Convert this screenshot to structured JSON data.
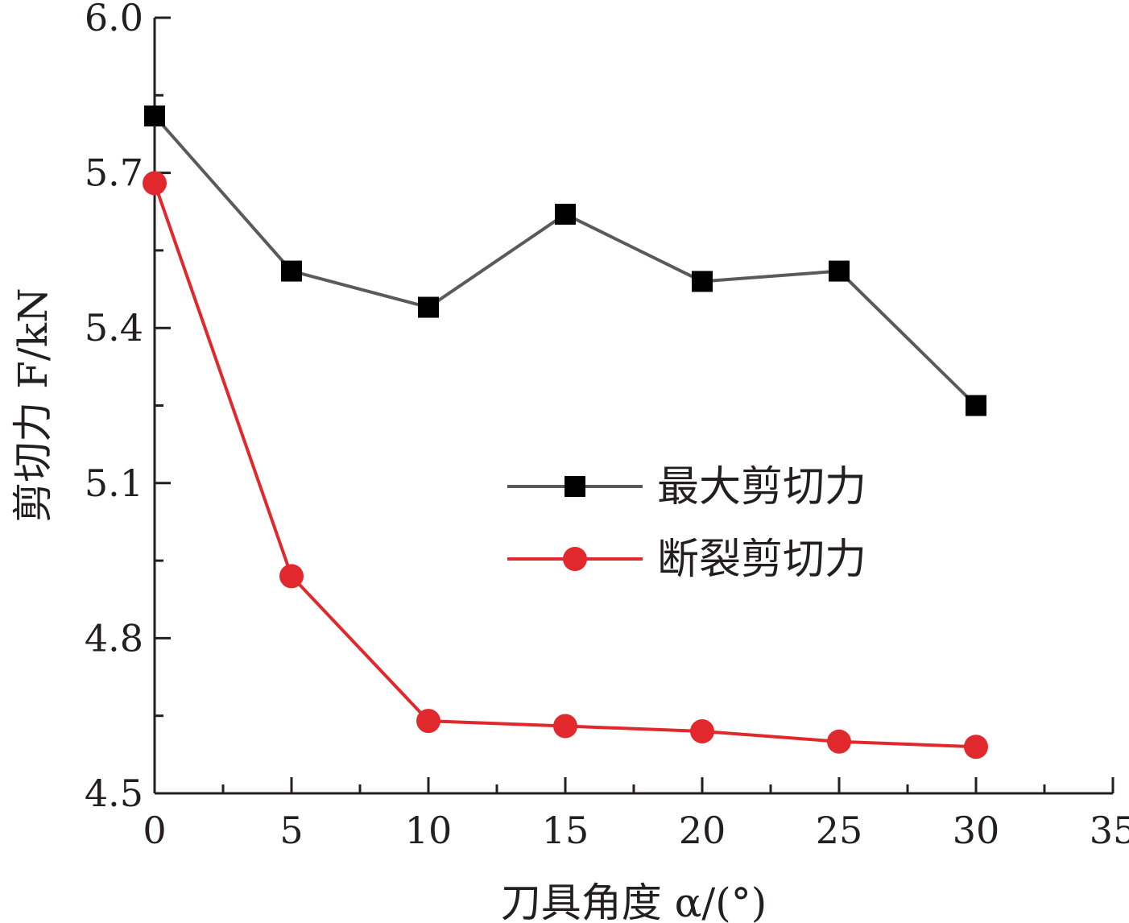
{
  "chart_data": {
    "type": "line",
    "title": "",
    "xlabel": "刀具角度 α/(°)",
    "ylabel": "剪切力 F/kN",
    "xlim": [
      0,
      35
    ],
    "ylim": [
      4.5,
      6.0
    ],
    "x_ticks": [
      "0",
      "5",
      "10",
      "15",
      "20",
      "25",
      "30",
      "35"
    ],
    "y_ticks": [
      "4.5",
      "4.8",
      "5.1",
      "5.4",
      "5.7",
      "6.0"
    ],
    "x_tick_values": [
      0,
      5,
      10,
      15,
      20,
      25,
      30,
      35
    ],
    "y_tick_values": [
      4.5,
      4.8,
      5.1,
      5.4,
      5.7,
      6.0
    ],
    "x_minor_step": 2.5,
    "y_minor_step": 0.15,
    "grid": false,
    "legend_position": "center-right",
    "x": [
      0,
      5,
      10,
      15,
      20,
      25,
      30
    ],
    "series": [
      {
        "name": "最大剪切力",
        "marker": "square",
        "line_color": "#5a5a5a",
        "marker_color": "#000000",
        "values": [
          5.81,
          5.51,
          5.44,
          5.62,
          5.49,
          5.51,
          5.25
        ]
      },
      {
        "name": "断裂剪切力",
        "marker": "circle",
        "line_color": "#e0282d",
        "marker_color": "#e0282d",
        "values": [
          5.68,
          4.92,
          4.64,
          4.63,
          4.62,
          4.6,
          4.59
        ]
      }
    ]
  }
}
